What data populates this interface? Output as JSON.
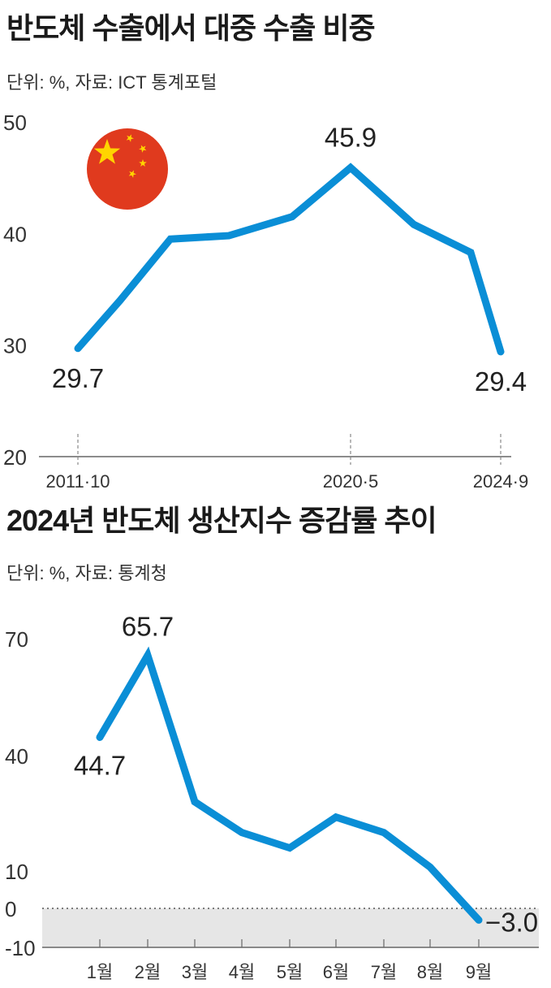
{
  "charts": [
    {
      "title": "반도체 수출에서 대중 수출 비중",
      "subtitle": "단위: %, 자료: ICT 통계포털",
      "icon": "china-flag-icon",
      "colors": {
        "line": "#0a8ed6",
        "flag_red": "#e03a1e",
        "flag_star": "#ffd400"
      }
    },
    {
      "title": "2024년 반도체 생산지수 증감률 추이",
      "subtitle": "단위: %, 자료: 통계청",
      "colors": {
        "line": "#0a8ed6",
        "negative_band": "#e6e6e6"
      }
    }
  ],
  "chart_data": [
    {
      "type": "line",
      "title": "반도체 수출에서 대중 수출 비중",
      "subtitle": "단위: %, 자료: ICT 통계포털",
      "x": [
        "2011·10",
        "",
        "",
        "",
        "",
        "2020·5",
        "",
        "",
        "2024·9"
      ],
      "y": [
        29.7,
        34.0,
        39.5,
        39.8,
        41.5,
        45.9,
        40.8,
        38.3,
        29.4
      ],
      "x_tick_labels": [
        "2011·10",
        "2020·5",
        "2024·9"
      ],
      "x_tick_positions": [
        0,
        5,
        8
      ],
      "y_ticks": [
        20,
        30,
        40,
        50
      ],
      "ylim": [
        20,
        50
      ],
      "data_labels": [
        {
          "index": 0,
          "text": "29.7",
          "pos": "below"
        },
        {
          "index": 5,
          "text": "45.9",
          "pos": "above"
        },
        {
          "index": 8,
          "text": "29.4",
          "pos": "below"
        }
      ],
      "grid": false
    },
    {
      "type": "line",
      "title": "2024년 반도체 생산지수 증감률 추이",
      "subtitle": "단위: %, 자료: 통계청",
      "categories": [
        "1월",
        "2월",
        "3월",
        "4월",
        "5월",
        "6월",
        "7월",
        "8월",
        "9월"
      ],
      "values": [
        44.7,
        65.7,
        28.0,
        20.0,
        16.0,
        24.0,
        20.0,
        11.0,
        -3.0
      ],
      "y_ticks": [
        -10,
        0,
        10,
        40,
        70
      ],
      "ylim": [
        -10,
        70
      ],
      "data_labels": [
        {
          "index": 0,
          "text": "44.7",
          "pos": "below"
        },
        {
          "index": 1,
          "text": "65.7",
          "pos": "above"
        },
        {
          "index": 8,
          "text": "−3.0",
          "pos": "right"
        }
      ],
      "zero_line": "dotted",
      "negative_region_shaded": true,
      "grid": false
    }
  ]
}
